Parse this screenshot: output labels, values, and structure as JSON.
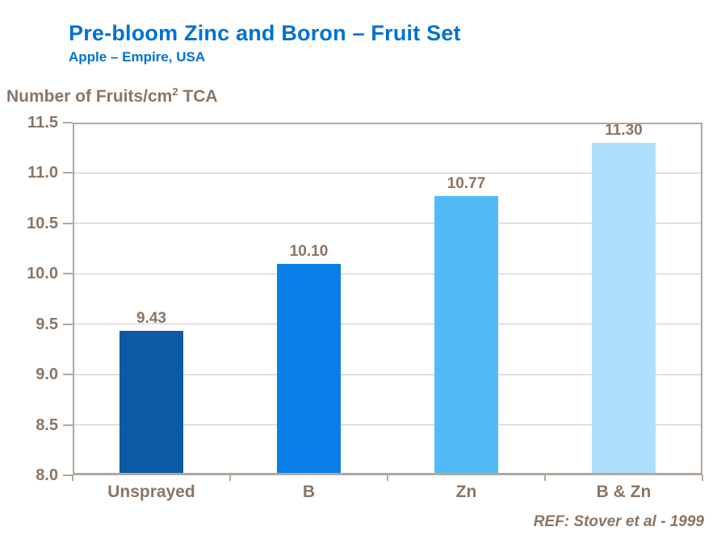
{
  "header": {
    "title": "Pre-bloom Zinc and Boron – Fruit Set",
    "subtitle": "Apple – Empire, USA"
  },
  "y_axis_title": {
    "prefix": "Number of Fruits/cm",
    "sup": "2",
    "suffix": " TCA",
    "full": "Number of Fruits/cm² TCA"
  },
  "footer": {
    "reference": "REF: Stover et al - 1999"
  },
  "colors": {
    "title_blue": "#0072CE",
    "axis_text_brown": "#8A7565",
    "frame": "#B3A79D",
    "gridline": "#CCC5BF",
    "bars": [
      "#0D5AA7",
      "#0880E8",
      "#52BAF7",
      "#AFE0FB"
    ]
  },
  "chart_data": {
    "type": "bar",
    "title": "Pre-bloom Zinc and Boron – Fruit Set",
    "subtitle": "Apple – Empire, USA",
    "categories": [
      "Unsprayed",
      "B",
      "Zn",
      "B & Zn"
    ],
    "values": [
      9.43,
      10.1,
      10.77,
      11.3
    ],
    "value_labels": [
      "9.43",
      "10.10",
      "10.77",
      "11.30"
    ],
    "bar_colors": [
      "#0D5AA7",
      "#0880E8",
      "#52BAF7",
      "#AFE0FB"
    ],
    "xlabel": "",
    "ylabel": "Number of Fruits/cm² TCA",
    "ylim": [
      8.0,
      11.5
    ],
    "ytick_step": 0.5,
    "ytick_labels": [
      "8.0",
      "8.5",
      "9.0",
      "9.5",
      "10.0",
      "10.5",
      "11.0",
      "11.5"
    ],
    "grid": true,
    "legend": "none",
    "annotation": "REF: Stover et al - 1999"
  }
}
